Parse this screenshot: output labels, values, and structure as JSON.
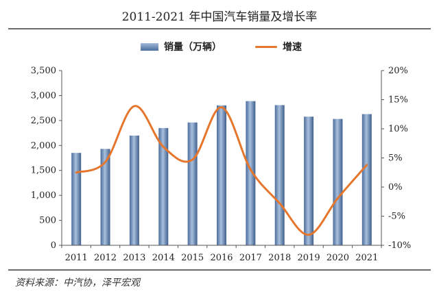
{
  "title": "2011-2021 年中国汽车销量及增长率",
  "source": "资料来源：中汽协，泽平宏观",
  "legend": {
    "bar_label": "销量（万辆）",
    "line_label": "增速"
  },
  "colors": {
    "bar": "#5E80AE",
    "line": "#E6762C"
  },
  "chart_data": {
    "type": "bar",
    "categories": [
      "2011",
      "2012",
      "2013",
      "2014",
      "2015",
      "2016",
      "2017",
      "2018",
      "2019",
      "2020",
      "2021"
    ],
    "series": [
      {
        "name": "销量（万辆）",
        "type": "bar",
        "axis": "left",
        "values": [
          1851,
          1931,
          2198,
          2349,
          2460,
          2803,
          2888,
          2808,
          2577,
          2531,
          2628
        ]
      },
      {
        "name": "增速",
        "type": "line",
        "axis": "right",
        "unit": "%",
        "values": [
          2.5,
          4.3,
          13.9,
          6.9,
          4.7,
          13.7,
          3.0,
          -2.8,
          -8.2,
          -1.9,
          3.8
        ]
      }
    ],
    "left_axis": {
      "ylim": [
        0,
        3500
      ],
      "ticks": [
        "0",
        "500",
        "1,000",
        "1,500",
        "2,000",
        "2,500",
        "3,000",
        "3,500"
      ]
    },
    "right_axis": {
      "ylim": [
        -10,
        20
      ],
      "ticks": [
        "-10%",
        "-5%",
        "0%",
        "5%",
        "10%",
        "15%",
        "20%"
      ]
    },
    "grid": false,
    "legend_position": "top"
  }
}
